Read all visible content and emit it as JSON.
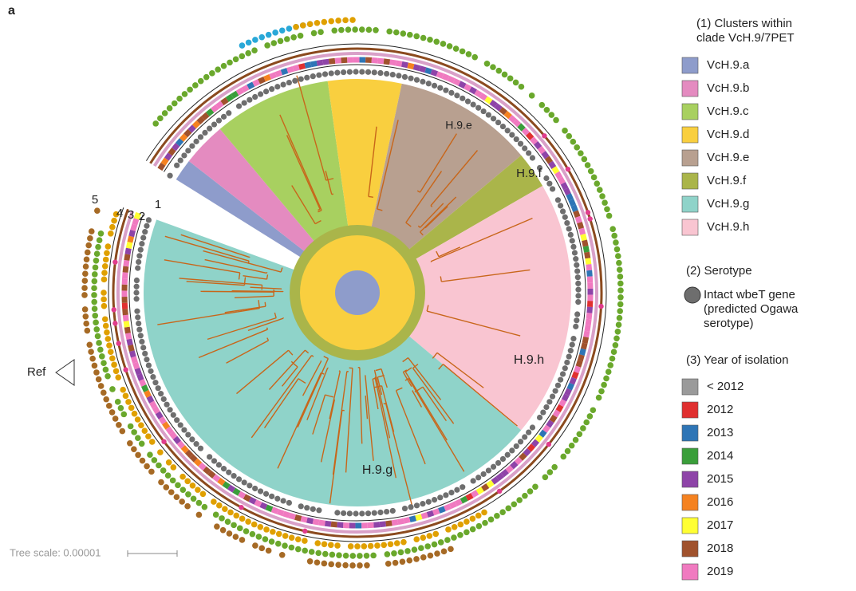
{
  "panel": "a",
  "tree_scale": "Tree scale: 0.00001",
  "ring_labels": [
    "5",
    "4",
    "3",
    "2",
    "1"
  ],
  "reference": "Ref",
  "clade_labels": [
    "H.9.e",
    "H.9.f",
    "H.9.g",
    "H.9.h"
  ],
  "legend": {
    "clusters": {
      "title": [
        "(1) Clusters within",
        "clade VcH.9/7PET"
      ],
      "items": [
        "VcH.9.a",
        "VcH.9.b",
        "VcH.9.c",
        "VcH.9.d",
        "VcH.9.e",
        "VcH.9.f",
        "VcH.9.g",
        "VcH.9.h"
      ],
      "colors": [
        "#8e9ccb",
        "#e48bc0",
        "#a8d060",
        "#f9cf3f",
        "#b8a090",
        "#aab54a",
        "#8fd3c9",
        "#f9c5d1"
      ]
    },
    "serotype": {
      "title": "(2) Serotype",
      "item": [
        "Intact wbeT gene",
        "(predicted Ogawa",
        "serotype)"
      ]
    },
    "year": {
      "title": "(3) Year of isolation",
      "items": [
        "< 2012",
        "2012",
        "2013",
        "2014",
        "2015",
        "2016",
        "2017",
        "2018",
        "2019"
      ],
      "colors": [
        "#9a9a9a",
        "#e03030",
        "#2e75b6",
        "#3a9e3a",
        "#8e44a8",
        "#f58220",
        "#ffff33",
        "#a0522d",
        "#f07ac0"
      ]
    }
  }
}
